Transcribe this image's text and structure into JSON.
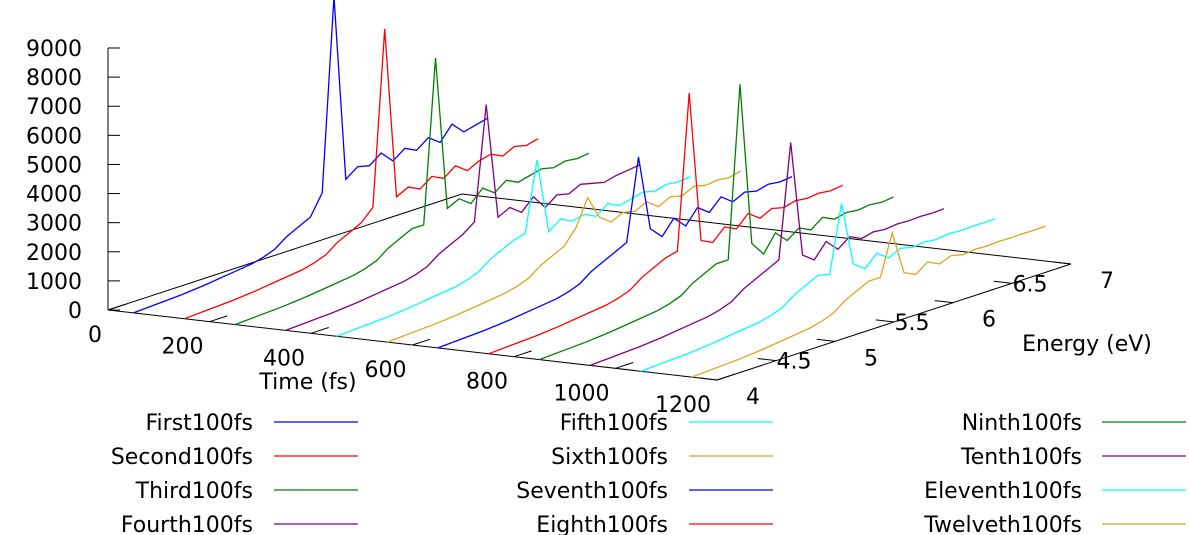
{
  "chart_data": {
    "type": "line",
    "view": "3d-waterfall",
    "xlabel": "Time (fs)",
    "ylabel": "Energy (eV)",
    "zlabel": "",
    "x_ticks": [
      "0",
      "200",
      "400",
      "600",
      "800",
      "1000",
      "1200"
    ],
    "y_ticks": [
      "4",
      "4.5",
      "5",
      "5.5",
      "6",
      "6.5",
      "7"
    ],
    "z_ticks": [
      "0",
      "1000",
      "2000",
      "3000",
      "4000",
      "5000",
      "6000",
      "7000",
      "8000",
      "9000"
    ],
    "xlim": [
      0,
      1200
    ],
    "ylim": [
      4,
      7
    ],
    "zlim": [
      0,
      9000
    ],
    "legend_position": "bottom",
    "series": [
      {
        "name": "First100fs",
        "color": "#0000ff",
        "x_start": 0,
        "x_end": 100,
        "energy": [
          4.0,
          4.2,
          4.4,
          4.6,
          4.8,
          5.0,
          5.1,
          5.2,
          5.3,
          5.4,
          5.5,
          5.6,
          5.7,
          5.8,
          5.9,
          6.0,
          6.1,
          6.2,
          6.3,
          6.4,
          6.5,
          6.6,
          6.7,
          6.8,
          6.9,
          7.0
        ],
        "intensity": [
          0,
          40,
          80,
          150,
          250,
          350,
          450,
          600,
          900,
          1100,
          1300,
          2000,
          8600,
          2200,
          2500,
          2400,
          2700,
          2300,
          2600,
          2400,
          2700,
          2400,
          2900,
          2500,
          2600,
          2700
        ]
      },
      {
        "name": "Second100fs",
        "color": "#ff0000",
        "x_start": 100,
        "x_end": 200,
        "energy": [
          4.0,
          4.2,
          4.4,
          4.6,
          4.8,
          5.0,
          5.1,
          5.2,
          5.3,
          5.4,
          5.5,
          5.6,
          5.7,
          5.8,
          5.9,
          6.0,
          6.1,
          6.2,
          6.3,
          6.4,
          6.5,
          6.6,
          6.7,
          6.8,
          6.9,
          7.0
        ],
        "intensity": [
          0,
          40,
          80,
          150,
          250,
          350,
          450,
          600,
          900,
          1100,
          1300,
          1700,
          7700,
          1800,
          2000,
          1800,
          2100,
          1900,
          2200,
          1900,
          2100,
          2200,
          2000,
          2200,
          2100,
          2200
        ]
      },
      {
        "name": "Third100fs",
        "color": "#008000",
        "x_start": 200,
        "x_end": 300,
        "energy": [
          4.0,
          4.2,
          4.4,
          4.6,
          4.8,
          5.0,
          5.1,
          5.2,
          5.3,
          5.4,
          5.5,
          5.6,
          5.7,
          5.8,
          5.9,
          6.0,
          6.1,
          6.2,
          6.3,
          6.4,
          6.5,
          6.6,
          6.7,
          6.8,
          6.9,
          7.0
        ],
        "intensity": [
          0,
          40,
          80,
          150,
          250,
          350,
          450,
          600,
          900,
          1100,
          1300,
          1300,
          6900,
          1600,
          1800,
          1500,
          1900,
          1600,
          1900,
          1700,
          1800,
          1900,
          1800,
          1900,
          1850,
          1900
        ]
      },
      {
        "name": "Fourth100fs",
        "color": "#800080",
        "x_start": 300,
        "x_end": 400,
        "energy": [
          4.0,
          4.2,
          4.4,
          4.6,
          4.8,
          5.0,
          5.1,
          5.2,
          5.3,
          5.4,
          5.5,
          5.6,
          5.7,
          5.8,
          5.9,
          6.0,
          6.1,
          6.2,
          6.3,
          6.4,
          6.5,
          6.6,
          6.7,
          6.8,
          6.9,
          7.0
        ],
        "intensity": [
          0,
          40,
          80,
          150,
          250,
          350,
          450,
          600,
          900,
          1100,
          1300,
          1600,
          5500,
          1500,
          1700,
          1400,
          1800,
          1300,
          1600,
          1500,
          1700,
          1600,
          1500,
          1600,
          1650,
          1700
        ]
      },
      {
        "name": "Fifth100fs",
        "color": "#00ffff",
        "x_start": 400,
        "x_end": 500,
        "energy": [
          4.0,
          4.2,
          4.4,
          4.6,
          4.8,
          5.0,
          5.1,
          5.2,
          5.3,
          5.4,
          5.5,
          5.6,
          5.7,
          5.8,
          5.9,
          6.0,
          6.1,
          6.2,
          6.3,
          6.4,
          6.5,
          6.6,
          6.7,
          6.8,
          6.9,
          7.0
        ],
        "intensity": [
          0,
          40,
          80,
          150,
          250,
          350,
          450,
          600,
          900,
          1100,
          1300,
          1400,
          3800,
          1200,
          1500,
          1300,
          1400,
          1200,
          1500,
          1300,
          1400,
          1500,
          1400,
          1500,
          1450,
          1500
        ]
      },
      {
        "name": "Sixth100fs",
        "color": "#daa520",
        "x_start": 500,
        "x_end": 600,
        "energy": [
          4.0,
          4.2,
          4.4,
          4.6,
          4.8,
          5.0,
          5.1,
          5.2,
          5.3,
          5.4,
          5.5,
          5.6,
          5.7,
          5.8,
          5.9,
          6.0,
          6.1,
          6.2,
          6.3,
          6.4,
          6.5,
          6.6,
          6.7,
          6.8,
          6.9,
          7.0
        ],
        "intensity": [
          0,
          40,
          80,
          150,
          250,
          350,
          450,
          600,
          900,
          1100,
          1300,
          1800,
          2700,
          1900,
          1600,
          1800,
          1700,
          1900,
          1600,
          1800,
          1700,
          1900,
          1800,
          1850,
          1800,
          1900
        ]
      },
      {
        "name": "Seventh100fs",
        "color": "#0000ff",
        "x_start": 600,
        "x_end": 700,
        "energy": [
          4.0,
          4.2,
          4.4,
          4.6,
          4.8,
          5.0,
          5.1,
          5.2,
          5.3,
          5.4,
          5.5,
          5.6,
          5.7,
          5.8,
          5.9,
          6.0,
          6.1,
          6.2,
          6.3,
          6.4,
          6.5,
          6.6,
          6.7,
          6.8,
          6.9,
          7.0
        ],
        "intensity": [
          0,
          40,
          80,
          150,
          250,
          350,
          450,
          600,
          900,
          1100,
          1300,
          1500,
          4300,
          1700,
          1300,
          1800,
          1400,
          1900,
          1600,
          2000,
          1700,
          1900,
          1800,
          1900,
          1850,
          1900
        ]
      },
      {
        "name": "Eighth100fs",
        "color": "#ff0000",
        "x_start": 700,
        "x_end": 800,
        "energy": [
          4.0,
          4.2,
          4.4,
          4.6,
          4.8,
          5.0,
          5.1,
          5.2,
          5.3,
          5.4,
          5.5,
          5.6,
          5.7,
          5.8,
          5.9,
          6.0,
          6.1,
          6.2,
          6.3,
          6.4,
          6.5,
          6.6,
          6.7,
          6.8,
          6.9,
          7.0
        ],
        "intensity": [
          0,
          40,
          80,
          150,
          250,
          350,
          450,
          600,
          900,
          1100,
          1300,
          1400,
          6700,
          1500,
          1300,
          1700,
          1500,
          1900,
          1600,
          1800,
          1700,
          1800,
          1750,
          1800,
          1750,
          1800
        ]
      },
      {
        "name": "Ninth100fs",
        "color": "#008000",
        "x_start": 800,
        "x_end": 900,
        "energy": [
          4.0,
          4.2,
          4.4,
          4.6,
          4.8,
          5.0,
          5.1,
          5.2,
          5.3,
          5.4,
          5.5,
          5.6,
          5.7,
          5.8,
          5.9,
          6.0,
          6.1,
          6.2,
          6.3,
          6.4,
          6.5,
          6.6,
          6.7,
          6.8,
          6.9,
          7.0
        ],
        "intensity": [
          0,
          40,
          80,
          150,
          250,
          350,
          450,
          600,
          900,
          1100,
          1300,
          1300,
          7200,
          1600,
          1100,
          1700,
          1300,
          1600,
          1400,
          1700,
          1500,
          1600,
          1550,
          1600,
          1550,
          1600
        ]
      },
      {
        "name": "Tenth100fs",
        "color": "#800080",
        "x_start": 900,
        "x_end": 1000,
        "energy": [
          4.0,
          4.2,
          4.4,
          4.6,
          4.8,
          5.0,
          5.1,
          5.2,
          5.3,
          5.4,
          5.5,
          5.6,
          5.7,
          5.8,
          5.9,
          6.0,
          6.1,
          6.2,
          6.3,
          6.4,
          6.5,
          6.6,
          6.7,
          6.8,
          6.9,
          7.0
        ],
        "intensity": [
          0,
          40,
          80,
          150,
          250,
          350,
          450,
          600,
          900,
          1100,
          1300,
          1500,
          5400,
          1400,
          1100,
          1600,
          1200,
          1500,
          1300,
          1400,
          1350,
          1400,
          1380,
          1400,
          1380,
          1400
        ]
      },
      {
        "name": "Eleventh100fs",
        "color": "#00ffff",
        "x_start": 1000,
        "x_end": 1100,
        "energy": [
          4.0,
          4.2,
          4.4,
          4.6,
          4.8,
          5.0,
          5.1,
          5.2,
          5.3,
          5.4,
          5.5,
          5.6,
          5.7,
          5.8,
          5.9,
          6.0,
          6.1,
          6.2,
          6.3,
          6.4,
          6.5,
          6.6,
          6.7,
          6.8,
          6.9,
          7.0
        ],
        "intensity": [
          0,
          40,
          80,
          150,
          250,
          350,
          450,
          600,
          900,
          1100,
          1300,
          1200,
          3500,
          1300,
          1000,
          1400,
          1100,
          1300,
          1200,
          1250,
          1200,
          1250,
          1230,
          1250,
          1240,
          1250
        ]
      },
      {
        "name": "Twelveth100fs",
        "color": "#daa520",
        "x_start": 1100,
        "x_end": 1200,
        "energy": [
          4.0,
          4.2,
          4.4,
          4.6,
          4.8,
          5.0,
          5.1,
          5.2,
          5.3,
          5.4,
          5.5,
          5.6,
          5.7,
          5.8,
          5.9,
          6.0,
          6.1,
          6.2,
          6.3,
          6.4,
          6.5,
          6.6,
          6.7,
          6.8,
          6.9,
          7.0
        ],
        "intensity": [
          0,
          40,
          80,
          150,
          250,
          350,
          450,
          600,
          900,
          1100,
          1300,
          1300,
          2700,
          1200,
          1000,
          1300,
          1100,
          1250,
          1150,
          1200,
          1180,
          1200,
          1190,
          1200,
          1195,
          1200
        ]
      }
    ]
  }
}
